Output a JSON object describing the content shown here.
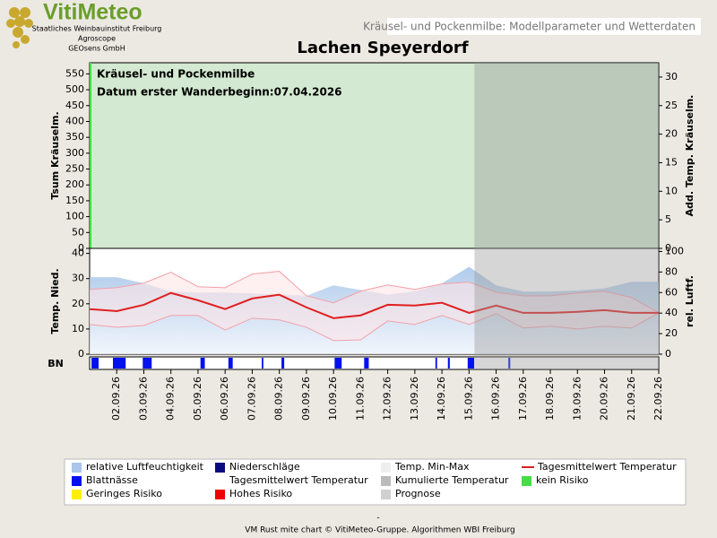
{
  "header": {
    "logo": "VitiMeteo",
    "lines": [
      "Staatliches Weinbauinstitut Freiburg",
      "Agroscope",
      "GEOsens GmbH"
    ],
    "tab": "Kräusel- und Pockenmilbe: Modellparameter und Wetterdaten",
    "title": "Lachen Speyerdorf"
  },
  "chart_data": [
    {
      "type": "area",
      "annotations": [
        "Kräusel- und Pockenmilbe",
        "Datum  erster Wanderbeginn:07.04.2026"
      ],
      "ylabel": "Tsum Kräuselm.",
      "y2label": "Add. Temp. Kräuselm.",
      "color": "#d3e9d1",
      "ylim": [
        0,
        585
      ],
      "yticks": [
        0,
        50,
        100,
        150,
        200,
        250,
        300,
        350,
        400,
        450,
        500,
        550
      ],
      "y2lim": [
        0,
        32.5
      ],
      "y2ticks": [
        0,
        5,
        10,
        15,
        20,
        25,
        30
      ]
    },
    {
      "type": "line",
      "ylabel": "Temp. Nied.",
      "y2label": "rel. Luftf.",
      "bn_label": "BN",
      "categories": [
        null,
        "02.09.26",
        "03.09.26",
        "04.09.26",
        "05.09.26",
        "06.09.26",
        "07.09.26",
        "08.09.26",
        "09.09.26",
        "10.09.26",
        "11.09.26",
        "12.09.26",
        "13.09.26",
        "14.09.26",
        "15.09.26",
        "16.09.26",
        "17.09.26",
        "18.09.26",
        "19.09.26",
        "20.09.26",
        "21.09.26",
        "22.09.26"
      ],
      "ylim": [
        0,
        42
      ],
      "yticks": [
        0,
        10,
        20,
        30,
        40
      ],
      "y2lim": [
        0,
        103
      ],
      "y2ticks": [
        0,
        20,
        40,
        60,
        80,
        100
      ],
      "prognose_from": 14.2,
      "series": [
        {
          "name": "relative Luftfeuchtigkeit",
          "color": "#a9c6e8",
          "axis": "y2",
          "values": [
            75,
            75,
            69,
            61,
            60,
            60,
            59,
            58,
            57,
            67,
            62.5,
            58,
            61,
            69,
            85,
            67,
            61,
            61,
            62,
            64,
            70.5,
            70.5
          ]
        },
        {
          "name": "Temp. Min-Max",
          "color": "#f4a0a8",
          "values": [
            25.7,
            26.4,
            28.2,
            32.5,
            26.8,
            26.4,
            31.8,
            32.9,
            23.2,
            20.4,
            25,
            27.5,
            25.7,
            27.9,
            28.6,
            24.6,
            23.2,
            23.2,
            24.3,
            25,
            22.5,
            16.4
          ],
          "lows": [
            11.8,
            10.7,
            11.4,
            15.4,
            15.4,
            9.6,
            14.3,
            13.6,
            10.7,
            5.4,
            5.7,
            13.2,
            11.8,
            15.4,
            11.8,
            16.1,
            10.4,
            11.1,
            10,
            11.1,
            10.4,
            16.4
          ]
        },
        {
          "name": "Tagesmittelwert Temperatur",
          "color": "#e02020",
          "values": [
            17.9,
            17.1,
            19.6,
            24.3,
            21.4,
            17.9,
            22.1,
            23.6,
            18.6,
            14.3,
            15.4,
            19.6,
            19.3,
            20.4,
            16.4,
            19.3,
            16.4,
            16.4,
            16.8,
            17.5,
            16.4,
            16.4
          ]
        }
      ],
      "bn_color": "#0010ee",
      "bn_intervals": [
        [
          0.07,
          0.33
        ],
        [
          0.86,
          1.33
        ],
        [
          1.96,
          2.29
        ],
        [
          4.09,
          4.25
        ],
        [
          5.12,
          5.28
        ],
        [
          6.35,
          6.41
        ],
        [
          7.08,
          7.18
        ],
        [
          9.04,
          9.3
        ],
        [
          10.13,
          10.3
        ],
        [
          12.76,
          12.82
        ],
        [
          13.22,
          13.29
        ],
        [
          13.95,
          14.19
        ],
        [
          15.45,
          15.52
        ]
      ]
    }
  ],
  "legend": {
    "items": [
      {
        "name": "relative Luftfeuchtigkeit",
        "color": "#a9c6e8"
      },
      {
        "name": "Niederschläge",
        "color": "#0a0a80"
      },
      {
        "name": "Temp. Min-Max",
        "color": "#eeeeee"
      },
      {
        "name": "Tagesmittelwert Temperatur",
        "color": "#e02020",
        "line": true
      },
      {
        "name": "Blattnässe",
        "color": "#0010ee"
      },
      {
        "name": "Tagesmittelwert Temperatur",
        "color": "#ffffff"
      },
      {
        "name": "Kumulierte Temperatur",
        "color": "#bbbbbb"
      },
      {
        "name": "kein Risiko",
        "color": "#44dd44"
      },
      {
        "name": "Geringes Risiko",
        "color": "#ffee00"
      },
      {
        "name": "Hohes Risiko",
        "color": "#ee0000"
      },
      {
        "name": "Prognose",
        "color": "#d0d0d0"
      }
    ]
  },
  "footer": {
    "dash": "-",
    "credit": "VM Rust mite chart © VitiMeteo-Gruppe. Algorithmen WBI Freiburg"
  }
}
